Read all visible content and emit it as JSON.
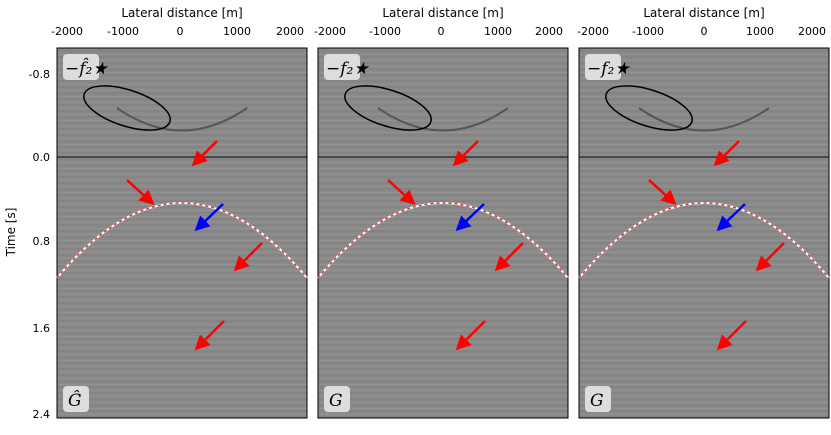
{
  "figure": {
    "y_axis_label": "Time [s]",
    "y_ticks": [
      "-0.8",
      "0.0",
      "0.8",
      "1.6",
      "2.4"
    ],
    "x_ticks": [
      "-2000",
      "-1000",
      "0",
      "1000",
      "2000"
    ],
    "panels": [
      {
        "x_axis_label": "Lateral distance [m]",
        "top_label": "−f̂₂★",
        "bottom_label": "Ĝ"
      },
      {
        "x_axis_label": "Lateral distance [m]",
        "top_label": "−f₂★",
        "bottom_label": "G"
      },
      {
        "x_axis_label": "Lateral distance [m]",
        "top_label": "−f₂★",
        "bottom_label": "G"
      }
    ]
  },
  "colors": {
    "background_gray": "#8a8a8a",
    "red_arrow": "#ff0000",
    "blue_arrow": "#0000ff"
  }
}
